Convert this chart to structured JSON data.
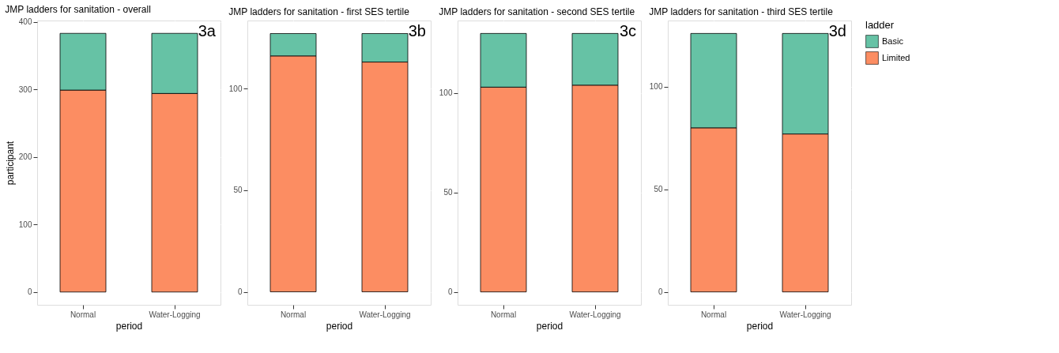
{
  "chart_data": [
    {
      "type": "bar",
      "stacked": true,
      "title": "JMP ladders for sanitation - overall",
      "categories": [
        "Normal",
        "Water-Logging"
      ],
      "xlabel": "period",
      "ylabel": "participant",
      "ylim": [
        -19,
        402
      ],
      "yticks": [
        0,
        100,
        200,
        300,
        400
      ],
      "grid": true,
      "series": [
        {
          "color": "#fc8d62",
          "values": [
            299,
            294
          ]
        },
        {
          "color": "#66c2a5",
          "values": [
            84,
            89
          ]
        }
      ],
      "annotations": [
        "3a"
      ]
    },
    {
      "type": "bar",
      "stacked": true,
      "title": "JMP ladders for sanitation - first SES tertile",
      "categories": [
        "Normal",
        "Water-Logging"
      ],
      "xlabel": "period",
      "ylim": [
        -6.4,
        133.4
      ],
      "yticks": [
        0,
        50,
        100
      ],
      "grid": true,
      "series": [
        {
          "color": "#fc8d62",
          "values": [
            116,
            113
          ]
        },
        {
          "color": "#66c2a5",
          "values": [
            11,
            14
          ]
        }
      ],
      "annotations": [
        "3b"
      ]
    },
    {
      "type": "bar",
      "stacked": true,
      "title": "JMP ladders for sanitation - second SES tertile",
      "categories": [
        "Normal",
        "Water-Logging"
      ],
      "xlabel": "period",
      "ylim": [
        -6.5,
        136.5
      ],
      "yticks": [
        0,
        50,
        100
      ],
      "grid": true,
      "series": [
        {
          "color": "#fc8d62",
          "values": [
            103,
            104
          ]
        },
        {
          "color": "#66c2a5",
          "values": [
            27,
            26
          ]
        }
      ],
      "annotations": [
        "3c"
      ]
    },
    {
      "type": "bar",
      "stacked": true,
      "title": "JMP ladders for sanitation - third SES tertile",
      "categories": [
        "Normal",
        "Water-Logging"
      ],
      "xlabel": "period",
      "ylim": [
        -6.3,
        132.3
      ],
      "yticks": [
        0,
        50,
        100
      ],
      "grid": true,
      "legend": "right",
      "legend_title": "ladder",
      "series": [
        {
          "name": "Limited",
          "color": "#fc8d62",
          "values": [
            80,
            77
          ]
        },
        {
          "name": "Basic",
          "color": "#66c2a5",
          "values": [
            46,
            49
          ]
        }
      ],
      "annotations": [
        "3d"
      ]
    }
  ]
}
